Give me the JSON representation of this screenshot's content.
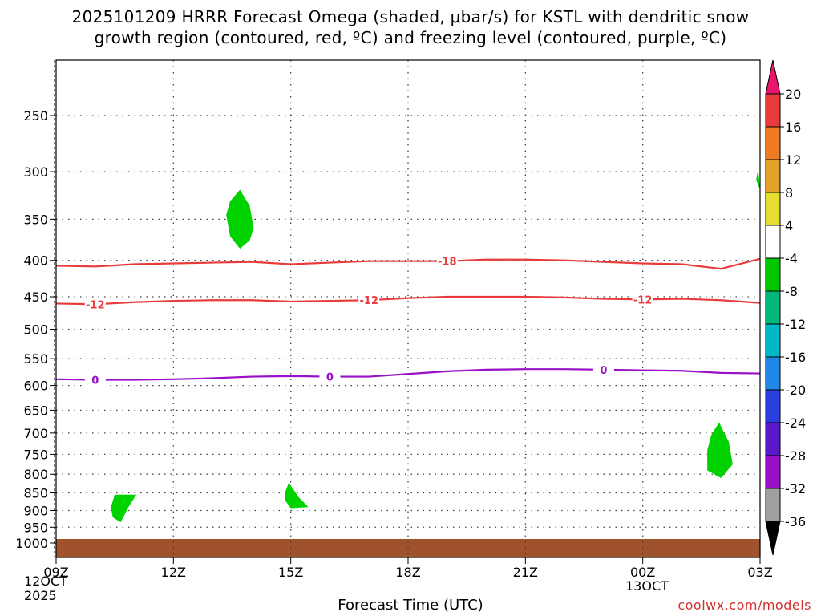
{
  "title": {
    "line1": "2025101209 HRRR Forecast Omega (shaded, μbar/s) for KSTL with dendritic snow",
    "line2": "growth region (contoured, red, ºC) and freezing level (contoured, purple, ºC)"
  },
  "xlabel": "Forecast Time (UTC)",
  "credit": "coolwx.com/models",
  "start_date": {
    "line1": "12OCT",
    "line2": "2025"
  },
  "next_date": "13OCT",
  "chart_data": {
    "type": "contour",
    "x_axis": {
      "label": "Forecast Time (UTC)",
      "ticks": [
        "09Z",
        "12Z",
        "15Z",
        "18Z",
        "21Z",
        "00Z",
        "03Z"
      ],
      "range_hours": [
        0,
        18
      ]
    },
    "y_axis": {
      "ticks": [
        250,
        300,
        350,
        400,
        450,
        500,
        550,
        600,
        650,
        700,
        750,
        800,
        850,
        900,
        950,
        1000
      ],
      "range_hpa": [
        200,
        1030
      ],
      "scale": "pressure (inverted)"
    },
    "grid": true,
    "red_contours": [
      {
        "label": "-18",
        "points": [
          [
            0,
            407
          ],
          [
            1,
            408
          ],
          [
            2,
            405
          ],
          [
            3,
            404
          ],
          [
            4,
            403
          ],
          [
            5,
            402
          ],
          [
            6,
            405
          ],
          [
            7,
            403
          ],
          [
            8,
            401
          ],
          [
            9,
            401
          ],
          [
            10,
            401
          ],
          [
            11,
            399
          ],
          [
            12,
            399
          ],
          [
            13,
            400
          ],
          [
            14,
            402
          ],
          [
            15,
            404
          ],
          [
            16,
            405
          ],
          [
            17,
            411
          ],
          [
            18,
            398
          ]
        ]
      },
      {
        "label": "-12",
        "points": [
          [
            0,
            460
          ],
          [
            1,
            461
          ],
          [
            2,
            458
          ],
          [
            3,
            456
          ],
          [
            4,
            455
          ],
          [
            5,
            455
          ],
          [
            6,
            457
          ],
          [
            7,
            456
          ],
          [
            8,
            455
          ],
          [
            9,
            452
          ],
          [
            10,
            450
          ],
          [
            11,
            450
          ],
          [
            12,
            450
          ],
          [
            13,
            451
          ],
          [
            14,
            453
          ],
          [
            15,
            454
          ],
          [
            16,
            453
          ],
          [
            17,
            455
          ],
          [
            18,
            459
          ]
        ]
      }
    ],
    "purple_contours": [
      {
        "label": "0",
        "points": [
          [
            0,
            588
          ],
          [
            1,
            589
          ],
          [
            2,
            589
          ],
          [
            3,
            588
          ],
          [
            4,
            586
          ],
          [
            5,
            583
          ],
          [
            6,
            582
          ],
          [
            7,
            583
          ],
          [
            8,
            583
          ],
          [
            9,
            578
          ],
          [
            10,
            573
          ],
          [
            11,
            570
          ],
          [
            12,
            569
          ],
          [
            13,
            569
          ],
          [
            14,
            570
          ],
          [
            15,
            571
          ],
          [
            16,
            572
          ],
          [
            17,
            576
          ],
          [
            18,
            577
          ]
        ]
      }
    ],
    "omega_regions": [
      {
        "level": "-8 to -4",
        "color": "#00d200",
        "points": [
          [
            4.7,
            318
          ],
          [
            4.95,
            335
          ],
          [
            5.05,
            360
          ],
          [
            4.95,
            375
          ],
          [
            4.7,
            385
          ],
          [
            4.45,
            370
          ],
          [
            4.35,
            345
          ],
          [
            4.45,
            330
          ]
        ]
      },
      {
        "level": "-8 to -4",
        "color": "#00d200",
        "points": [
          [
            1.5,
            855
          ],
          [
            2.05,
            855
          ],
          [
            1.85,
            890
          ],
          [
            1.65,
            935
          ],
          [
            1.45,
            920
          ],
          [
            1.4,
            890
          ]
        ]
      },
      {
        "level": "-8 to -4",
        "color": "#00d200",
        "points": [
          [
            5.95,
            822
          ],
          [
            6.2,
            862
          ],
          [
            6.45,
            890
          ],
          [
            6.0,
            893
          ],
          [
            5.85,
            870
          ],
          [
            5.85,
            850
          ]
        ]
      },
      {
        "level": "-8 to -4",
        "color": "#00d200",
        "points": [
          [
            16.95,
            676
          ],
          [
            17.2,
            720
          ],
          [
            17.3,
            775
          ],
          [
            17.0,
            810
          ],
          [
            16.65,
            790
          ],
          [
            16.65,
            740
          ],
          [
            16.75,
            705
          ]
        ]
      },
      {
        "level": "-8 to -4",
        "color": "#00d200",
        "points": [
          [
            17.95,
            297
          ],
          [
            18.0,
            318
          ],
          [
            17.9,
            308
          ]
        ]
      }
    ],
    "colorbar": {
      "labels": [
        "20",
        "16",
        "12",
        "8",
        "4",
        "-4",
        "-8",
        "-12",
        "-16",
        "-20",
        "-24",
        "-28",
        "-32",
        "-36"
      ],
      "colors": [
        "#e8176b",
        "#e83c3c",
        "#ee7b22",
        "#e3a229",
        "#e6dd30",
        "#ffffff",
        "#00c800",
        "#00b87a",
        "#00b8c8",
        "#1e88e8",
        "#2b3fe0",
        "#5a18c8",
        "#9a10c8",
        "#a0a0a0",
        "#000000"
      ]
    }
  }
}
